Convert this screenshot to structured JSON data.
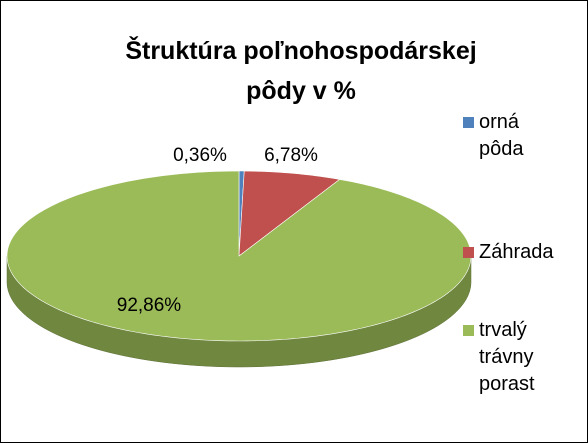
{
  "chart_data": {
    "type": "pie",
    "title": "Štruktúra poľnohospodárskej pôdy v %",
    "categories": [
      "orná pôda",
      "Záhrada",
      "trvalý trávny porast"
    ],
    "values": [
      0.36,
      6.78,
      92.86
    ],
    "value_labels": [
      "0,36%",
      "6,78%",
      "92,86%"
    ],
    "colors": [
      "#4f81bd",
      "#c0504d",
      "#9bbb59"
    ],
    "legend": "right"
  }
}
